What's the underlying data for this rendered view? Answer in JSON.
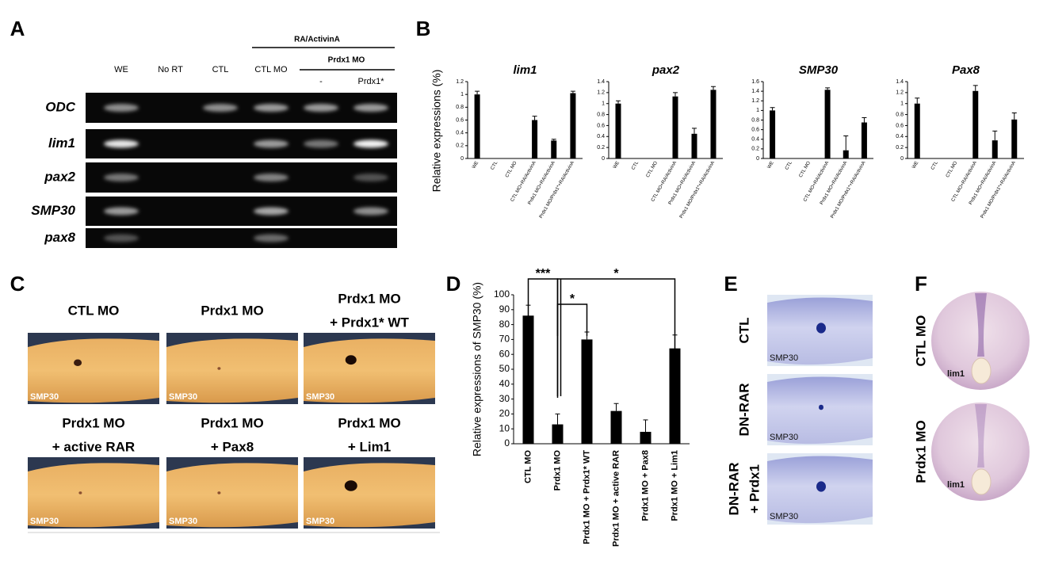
{
  "panel_labels": [
    "A",
    "B",
    "C",
    "D",
    "E",
    "F"
  ],
  "gel": {
    "header": "RA/ActivinA",
    "subheader": "Prdx1 MO",
    "lanes": [
      "WE",
      "No RT",
      "CTL",
      "CTL  MO",
      "-",
      "Prdx1*"
    ],
    "rows": [
      "ODC",
      "lim1",
      "pax2",
      "SMP30",
      "pax8"
    ]
  },
  "panel_b_ylabel": "Relative expressions (%)",
  "chart_data": [
    {
      "type": "bar",
      "title": "lim1",
      "categories": [
        "WE",
        "CTL",
        "CTL MO",
        "CTL MO+RA/ActivinA",
        "Prdx1 MO+RA/ActivinA",
        "Prdx1 MO/Prdx1*+RA/ActivinA"
      ],
      "values": [
        1.0,
        0,
        0,
        0.6,
        0.28,
        1.02
      ],
      "errors": [
        0.05,
        0,
        0,
        0.06,
        0.02,
        0.03
      ],
      "color": "#000000",
      "ylim": [
        0,
        1.2
      ],
      "yticks": [
        0,
        0.2,
        0.4,
        0.6,
        0.8,
        1,
        1.2
      ]
    },
    {
      "type": "bar",
      "title": "pax2",
      "categories": [
        "WE",
        "CTL",
        "CTL MO",
        "CTL MO+RA/ActivinA",
        "Prdx1 MO+RA/ActivinA",
        "Prdx1 MO/Prdx1*+RA/ActivinA"
      ],
      "values": [
        1.0,
        0,
        0,
        1.13,
        0.45,
        1.25
      ],
      "errors": [
        0.05,
        0,
        0,
        0.07,
        0.1,
        0.06
      ],
      "color": "#000000",
      "ylim": [
        0,
        1.4
      ],
      "yticks": [
        0,
        0.2,
        0.4,
        0.6,
        0.8,
        1,
        1.2,
        1.4
      ]
    },
    {
      "type": "bar",
      "title": "SMP30",
      "categories": [
        "WE",
        "CTL",
        "CTL MO",
        "CTL MO+RA/ActivinA",
        "Prdx1 MO+RA/ActivinA",
        "Prdx1 MO/Prdx1*+RA/ActivinA"
      ],
      "values": [
        1.0,
        0,
        0,
        1.43,
        0.17,
        0.75
      ],
      "errors": [
        0.06,
        0,
        0,
        0.04,
        0.3,
        0.1
      ],
      "color": "#000000",
      "ylim": [
        0,
        1.6
      ],
      "yticks": [
        0,
        0.2,
        0.4,
        0.6,
        0.8,
        1,
        1.2,
        1.4,
        1.6
      ]
    },
    {
      "type": "bar",
      "title": "Pax8",
      "categories": [
        "WE",
        "CTL",
        "CTL MO",
        "CTL MO+RA/ActivinA",
        "Prdx1 MO+RA/ActivinA",
        "Prdx1 MO/Prdx1*+RA/ActivinA"
      ],
      "values": [
        1.0,
        0,
        0,
        1.23,
        0.33,
        0.71
      ],
      "errors": [
        0.1,
        0,
        0,
        0.1,
        0.17,
        0.12
      ],
      "color": "#000000",
      "ylim": [
        0,
        1.4
      ],
      "yticks": [
        0,
        0.2,
        0.4,
        0.6,
        0.8,
        1,
        1.2,
        1.4
      ]
    },
    {
      "type": "bar",
      "ylabel": "Relative expressions of SMP30 (%)",
      "categories": [
        "CTL MO",
        "Prdx1 MO",
        "Prdx1 MO + Prdx1* WT",
        "Prdx1 MO + active RAR",
        "Prdx1 MO + Pax8",
        "Prdx1 MO + Lim1"
      ],
      "values": [
        86,
        13,
        70,
        22,
        8,
        64
      ],
      "errors": [
        7,
        7,
        5,
        5,
        8,
        9
      ],
      "color": "#000000",
      "ylim": [
        0,
        100
      ],
      "yticks": [
        0,
        10,
        20,
        30,
        40,
        50,
        60,
        70,
        80,
        90,
        100
      ],
      "annotations": [
        "***",
        "*",
        "*"
      ]
    }
  ],
  "panel_c": {
    "titles": [
      [
        "CTL MO"
      ],
      [
        "Prdx1 MO"
      ],
      [
        "Prdx1 MO",
        "+ Prdx1* WT"
      ],
      [
        "Prdx1 MO",
        "+ active RAR"
      ],
      [
        "Prdx1 MO",
        "+ Pax8"
      ],
      [
        "Prdx1 MO",
        "+ Lim1"
      ]
    ],
    "stain": "SMP30"
  },
  "panel_e": {
    "labels": [
      [
        "CTL"
      ],
      [
        "DN-RAR"
      ],
      [
        "DN-RAR",
        "+ Prdx1"
      ]
    ],
    "stain": "SMP30"
  },
  "panel_f": {
    "labels": [
      "CTL MO",
      "Prdx1 MO"
    ],
    "stain": "lim1"
  }
}
